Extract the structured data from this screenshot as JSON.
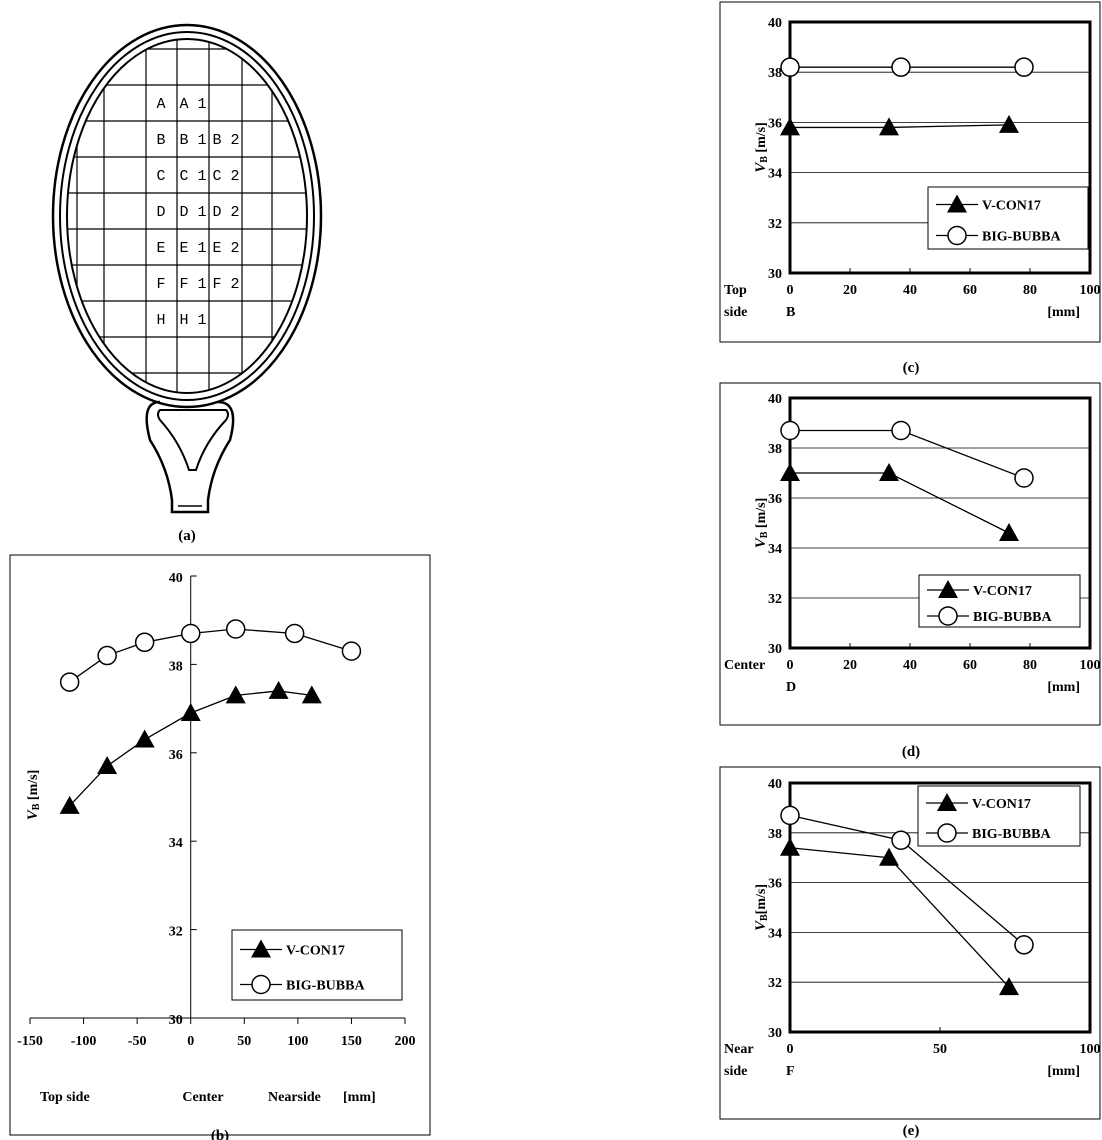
{
  "panels": {
    "a": {
      "label": "(a)"
    },
    "b": {
      "label": "(b)"
    },
    "c": {
      "label": "(c)"
    },
    "d": {
      "label": "(d)"
    },
    "e": {
      "label": "(e)"
    }
  },
  "racket": {
    "rows": [
      {
        "row": 1,
        "cells": [
          "A",
          "A 1",
          ""
        ]
      },
      {
        "row": 2,
        "cells": [
          "B",
          "B 1",
          "B 2"
        ]
      },
      {
        "row": 3,
        "cells": [
          "C",
          "C 1",
          "C 2"
        ]
      },
      {
        "row": 4,
        "cells": [
          "D",
          "D 1",
          "D 2"
        ]
      },
      {
        "row": 5,
        "cells": [
          "E",
          "E 1",
          "E 2"
        ]
      },
      {
        "row": 6,
        "cells": [
          "F",
          "F 1",
          "F 2"
        ]
      },
      {
        "row": 7,
        "cells": [
          "H",
          "H 1",
          ""
        ]
      }
    ]
  },
  "chart_data": [
    {
      "id": "b",
      "type": "line",
      "ylabel_main": "V",
      "ylabel_sub": "B",
      "ylabel_unit": " [m/s]",
      "xlim": [
        -150,
        200
      ],
      "xticks": [
        "-150",
        "-100",
        "-50",
        "0",
        "50",
        "100",
        "150",
        "200"
      ],
      "ylim": [
        30,
        40
      ],
      "yticks": [
        "30",
        "32",
        "34",
        "36",
        "38",
        "40"
      ],
      "grid": false,
      "xlabels": {
        "left": "Top side",
        "center": "Center",
        "right": "Nearside",
        "unit": "[mm]"
      },
      "legend_position": "bottom-right",
      "series": [
        {
          "name": "V-CON17",
          "marker": "triangle",
          "x": [
            -113,
            -78,
            -43,
            0,
            42,
            82,
            113
          ],
          "y": [
            34.8,
            35.7,
            36.3,
            36.9,
            37.3,
            37.4,
            37.3
          ]
        },
        {
          "name": "BIG-BUBBA",
          "marker": "circle",
          "x": [
            -113,
            -78,
            -43,
            0,
            42,
            97,
            150
          ],
          "y": [
            37.6,
            38.2,
            38.5,
            38.7,
            38.8,
            38.7,
            38.3
          ]
        }
      ]
    },
    {
      "id": "c",
      "type": "line",
      "ylabel_main": "V",
      "ylabel_sub": "B",
      "ylabel_unit": " [m/s]",
      "xlim": [
        0,
        100
      ],
      "xticks": [
        "0",
        "20",
        "40",
        "60",
        "80",
        "100"
      ],
      "ylim": [
        30,
        40
      ],
      "yticks": [
        "30",
        "32",
        "34",
        "36",
        "38",
        "40"
      ],
      "grid": true,
      "xlabel_left_1": "Top",
      "xlabel_left_2": "side",
      "xlabel_origin": "B",
      "xlabel_unit": "[mm]",
      "legend_position": "bottom-right",
      "series": [
        {
          "name": "V-CON17",
          "marker": "triangle",
          "x": [
            0,
            33,
            73
          ],
          "y": [
            35.8,
            35.8,
            35.9
          ]
        },
        {
          "name": "BIG-BUBBA",
          "marker": "circle",
          "x": [
            0,
            37,
            78
          ],
          "y": [
            38.2,
            38.2,
            38.2
          ]
        }
      ]
    },
    {
      "id": "d",
      "type": "line",
      "ylabel_main": "V",
      "ylabel_sub": "B",
      "ylabel_unit": " [m/s]",
      "xlim": [
        0,
        100
      ],
      "xticks": [
        "0",
        "20",
        "40",
        "60",
        "80",
        "100"
      ],
      "ylim": [
        30,
        40
      ],
      "yticks": [
        "30",
        "32",
        "34",
        "36",
        "38",
        "40"
      ],
      "grid": true,
      "xlabel_left_1": "Center",
      "xlabel_origin": "D",
      "xlabel_unit": "[mm]",
      "legend_position": "bottom-right",
      "series": [
        {
          "name": "V-CON17",
          "marker": "triangle",
          "x": [
            0,
            33,
            73
          ],
          "y": [
            37.0,
            37.0,
            34.6
          ]
        },
        {
          "name": "BIG-BUBBA",
          "marker": "circle",
          "x": [
            0,
            37,
            78
          ],
          "y": [
            38.7,
            38.7,
            36.8
          ]
        }
      ]
    },
    {
      "id": "e",
      "type": "line",
      "ylabel_main": "V",
      "ylabel_sub": "B",
      "ylabel_unit": "[m/s]",
      "xlim": [
        0,
        100
      ],
      "xticks": [
        "0",
        "50",
        "100"
      ],
      "ylim": [
        30,
        40
      ],
      "yticks": [
        "30",
        "32",
        "34",
        "36",
        "38",
        "40"
      ],
      "grid": true,
      "xlabel_left_1": "Near",
      "xlabel_left_2": "side",
      "xlabel_origin": "F",
      "xlabel_unit": "[mm]",
      "legend_position": "top-right",
      "series": [
        {
          "name": "V-CON17",
          "marker": "triangle",
          "x": [
            0,
            33,
            73
          ],
          "y": [
            37.4,
            37.0,
            31.8
          ]
        },
        {
          "name": "BIG-BUBBA",
          "marker": "circle",
          "x": [
            0,
            37,
            78
          ],
          "y": [
            38.7,
            37.7,
            33.5
          ]
        }
      ]
    }
  ]
}
